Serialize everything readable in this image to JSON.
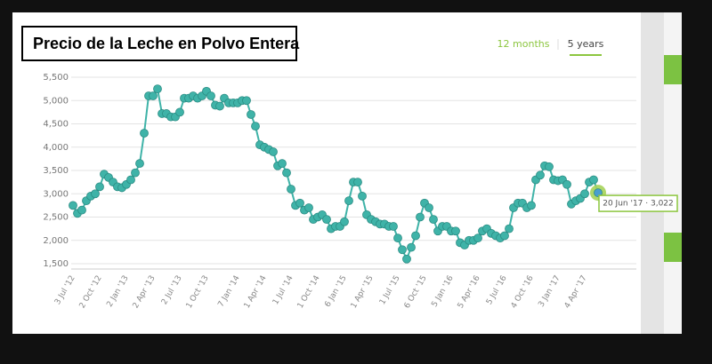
{
  "chart_data": {
    "type": "line",
    "title": "Precio de la Leche en Polvo Entera",
    "range_buttons": [
      "12 months",
      "5 years"
    ],
    "annotation": "20 Jun '17 · 3,022",
    "color": "#3fb3a8",
    "grid": true,
    "ylim": [
      1500,
      5500
    ],
    "yticks": [
      {
        "value": 1500,
        "label": "1,500"
      },
      {
        "value": 2000,
        "label": "2,000"
      },
      {
        "value": 2500,
        "label": "2,500"
      },
      {
        "value": 3000,
        "label": "3,000"
      },
      {
        "value": 3500,
        "label": "3,500"
      },
      {
        "value": 4000,
        "label": "4,000"
      },
      {
        "value": 4500,
        "label": "4,500"
      },
      {
        "value": 5000,
        "label": "5,000"
      },
      {
        "value": 5500,
        "label": "5,500"
      }
    ],
    "categories": [
      "3 Jul '12",
      null,
      null,
      null,
      null,
      null,
      "2 Oct '12",
      null,
      null,
      null,
      null,
      null,
      "2 Jan '13",
      null,
      null,
      null,
      null,
      null,
      "2 Apr '13",
      null,
      null,
      null,
      null,
      null,
      "2 Jul '13",
      null,
      null,
      null,
      null,
      null,
      "1 Oct '13",
      null,
      null,
      null,
      null,
      null,
      null,
      "7 Jan '14",
      null,
      null,
      null,
      null,
      null,
      "1 Apr '14",
      null,
      null,
      null,
      null,
      null,
      "1 Jul '14",
      null,
      null,
      null,
      null,
      null,
      "1 Oct '14",
      null,
      null,
      null,
      null,
      null,
      "6 Jan '15",
      null,
      null,
      null,
      null,
      null,
      "1 Apr '15",
      null,
      null,
      null,
      null,
      null,
      "1 Jul '15",
      null,
      null,
      null,
      null,
      null,
      "6 Oct '15",
      null,
      null,
      null,
      null,
      null,
      "5 Jan '16",
      null,
      null,
      null,
      null,
      null,
      "5 Apr '16",
      null,
      null,
      null,
      null,
      null,
      "5 Jul '16",
      null,
      null,
      null,
      null,
      null,
      "4 Oct '16",
      null,
      null,
      null,
      null,
      null,
      "3 Jan '17",
      null,
      null,
      null,
      null,
      null,
      "4 Apr '17",
      null,
      null,
      null
    ],
    "values": [
      2750,
      2580,
      2650,
      2850,
      2950,
      3000,
      3150,
      3420,
      3350,
      3250,
      3150,
      3130,
      3200,
      3300,
      3450,
      3650,
      4300,
      5100,
      5100,
      5250,
      4720,
      4720,
      4650,
      4650,
      4750,
      5050,
      5050,
      5100,
      5050,
      5100,
      5200,
      5100,
      4900,
      4880,
      5050,
      4950,
      4950,
      4950,
      5000,
      5000,
      4700,
      4450,
      4050,
      4000,
      3950,
      3900,
      3600,
      3650,
      3450,
      3100,
      2750,
      2800,
      2650,
      2700,
      2450,
      2500,
      2550,
      2450,
      2250,
      2300,
      2300,
      2400,
      2850,
      3250,
      3250,
      2950,
      2550,
      2450,
      2400,
      2350,
      2350,
      2300,
      2300,
      2050,
      1800,
      1600,
      1850,
      2100,
      2500,
      2800,
      2700,
      2450,
      2200,
      2300,
      2300,
      2200,
      2200,
      1950,
      1900,
      2000,
      2000,
      2050,
      2200,
      2250,
      2150,
      2100,
      2050,
      2100,
      2250,
      2700,
      2800,
      2800,
      2700,
      2750,
      3300,
      3400,
      3600,
      3580,
      3300,
      3280,
      3300,
      3200,
      2780,
      2850,
      2900,
      3000,
      3250,
      3300,
      3022
    ]
  }
}
